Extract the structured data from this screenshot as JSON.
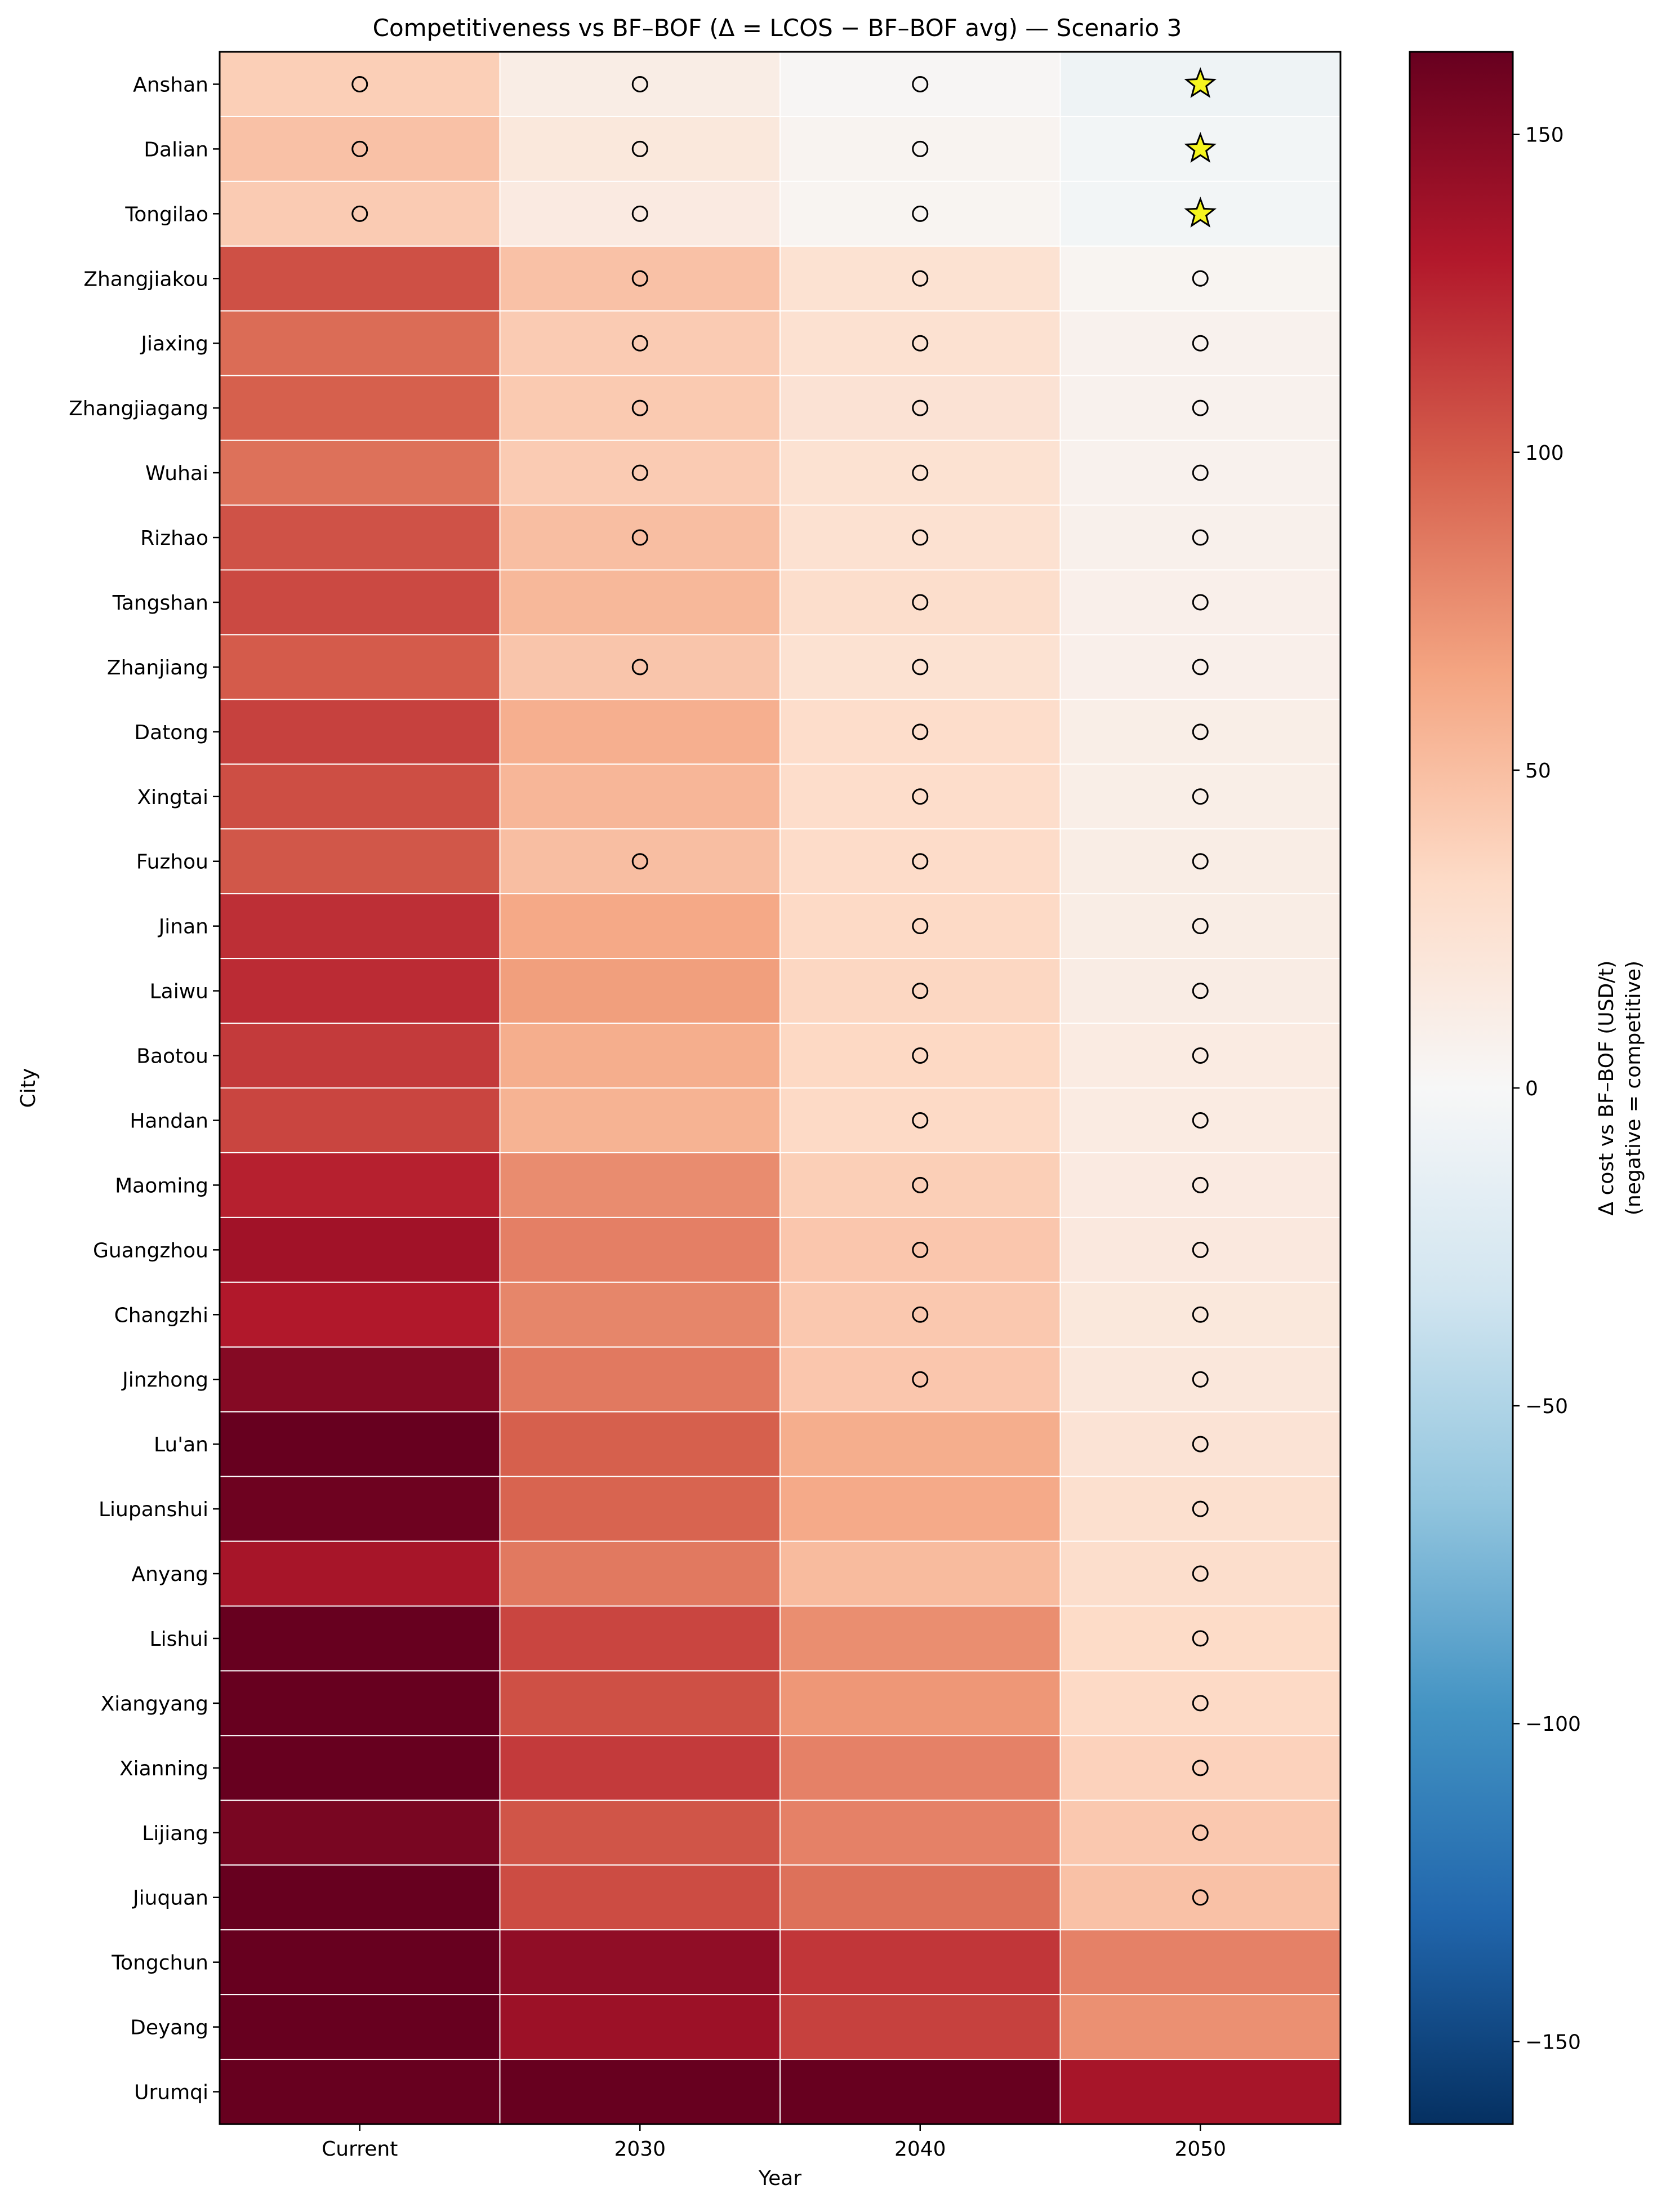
{
  "chart_data": {
    "type": "heatmap",
    "title": "Competitiveness vs BF–BOF (Δ = LCOS − BF–BOF avg) — Scenario 3",
    "xlabel": "Year",
    "ylabel": "City",
    "x_categories": [
      "Current",
      "2030",
      "2040",
      "2050"
    ],
    "y_categories": [
      "Anshan",
      "Dalian",
      "Tongilao",
      "Zhangjiakou",
      "Jiaxing",
      "Zhangjiagang",
      "Wuhai",
      "Rizhao",
      "Tangshan",
      "Zhanjiang",
      "Datong",
      "Xingtai",
      "Fuzhou",
      "Jinan",
      "Laiwu",
      "Baotou",
      "Handan",
      "Maoming",
      "Guangzhou",
      "Changzhi",
      "Jinzhong",
      "Lu'an",
      "Liupanshui",
      "Anyang",
      "Lishui",
      "Xiangyang",
      "Xianning",
      "Lijiang",
      "Jiuquan",
      "Tongchun",
      "Deyang",
      "Urumqi"
    ],
    "values": [
      [
        40,
        12,
        2,
        -8
      ],
      [
        48,
        18,
        5,
        -4
      ],
      [
        42,
        15,
        4,
        -4
      ],
      [
        105,
        48,
        25,
        4
      ],
      [
        92,
        42,
        26,
        7
      ],
      [
        98,
        43,
        24,
        7
      ],
      [
        90,
        42,
        25,
        7
      ],
      [
        104,
        50,
        26,
        8
      ],
      [
        108,
        54,
        29,
        9
      ],
      [
        100,
        46,
        25,
        9
      ],
      [
        112,
        59,
        30,
        11
      ],
      [
        106,
        55,
        30,
        11
      ],
      [
        102,
        50,
        31,
        12
      ],
      [
        120,
        63,
        33,
        12
      ],
      [
        122,
        68,
        35,
        13
      ],
      [
        115,
        60,
        34,
        14
      ],
      [
        110,
        57,
        33,
        14
      ],
      [
        127,
        77,
        40,
        15
      ],
      [
        138,
        83,
        45,
        17
      ],
      [
        131,
        80,
        44,
        18
      ],
      [
        150,
        86,
        45,
        19
      ],
      [
        175,
        98,
        60,
        23
      ],
      [
        160,
        96,
        62,
        27
      ],
      [
        135,
        86,
        52,
        29
      ],
      [
        178,
        110,
        76,
        32
      ],
      [
        165,
        105,
        72,
        33
      ],
      [
        180,
        115,
        82,
        38
      ],
      [
        155,
        103,
        82,
        44
      ],
      [
        175,
        107,
        90,
        48
      ],
      [
        170,
        145,
        117,
        82
      ],
      [
        166,
        140,
        112,
        75
      ],
      [
        185,
        168,
        172,
        135
      ]
    ],
    "markers": [
      [
        "o",
        "o",
        "o",
        "star"
      ],
      [
        "o",
        "o",
        "o",
        "star"
      ],
      [
        "o",
        "o",
        "o",
        "star"
      ],
      [
        "",
        "o",
        "o",
        "o"
      ],
      [
        "",
        "o",
        "o",
        "o"
      ],
      [
        "",
        "o",
        "o",
        "o"
      ],
      [
        "",
        "o",
        "o",
        "o"
      ],
      [
        "",
        "o",
        "o",
        "o"
      ],
      [
        "",
        "",
        "o",
        "o"
      ],
      [
        "",
        "o",
        "o",
        "o"
      ],
      [
        "",
        "",
        "o",
        "o"
      ],
      [
        "",
        "",
        "o",
        "o"
      ],
      [
        "",
        "o",
        "o",
        "o"
      ],
      [
        "",
        "",
        "o",
        "o"
      ],
      [
        "",
        "",
        "o",
        "o"
      ],
      [
        "",
        "",
        "o",
        "o"
      ],
      [
        "",
        "",
        "o",
        "o"
      ],
      [
        "",
        "",
        "o",
        "o"
      ],
      [
        "",
        "",
        "o",
        "o"
      ],
      [
        "",
        "",
        "o",
        "o"
      ],
      [
        "",
        "",
        "o",
        "o"
      ],
      [
        "",
        "",
        "",
        "o"
      ],
      [
        "",
        "",
        "",
        "o"
      ],
      [
        "",
        "",
        "",
        "o"
      ],
      [
        "",
        "",
        "",
        "o"
      ],
      [
        "",
        "",
        "",
        "o"
      ],
      [
        "",
        "",
        "",
        "o"
      ],
      [
        "",
        "",
        "",
        "o"
      ],
      [
        "",
        "",
        "",
        "o"
      ],
      [
        "",
        "",
        "",
        ""
      ],
      [
        "",
        "",
        "",
        ""
      ],
      [
        "",
        "",
        "",
        ""
      ]
    ],
    "colorbar": {
      "label_line1": "Δ cost vs BF–BOF (USD/t)",
      "label_line2": "(negative = competitive)",
      "range": [
        -163,
        163
      ],
      "ticks": [
        -150,
        -100,
        -50,
        0,
        50,
        100,
        150
      ],
      "tick_labels": [
        "−150",
        "−100",
        "−50",
        "0",
        "50",
        "100",
        "150"
      ],
      "colormap": "RdBu_r"
    },
    "colors": {
      "star_fill": "#f5f51f",
      "marker_edge": "#000000",
      "cell_border": "#ffffff"
    }
  }
}
